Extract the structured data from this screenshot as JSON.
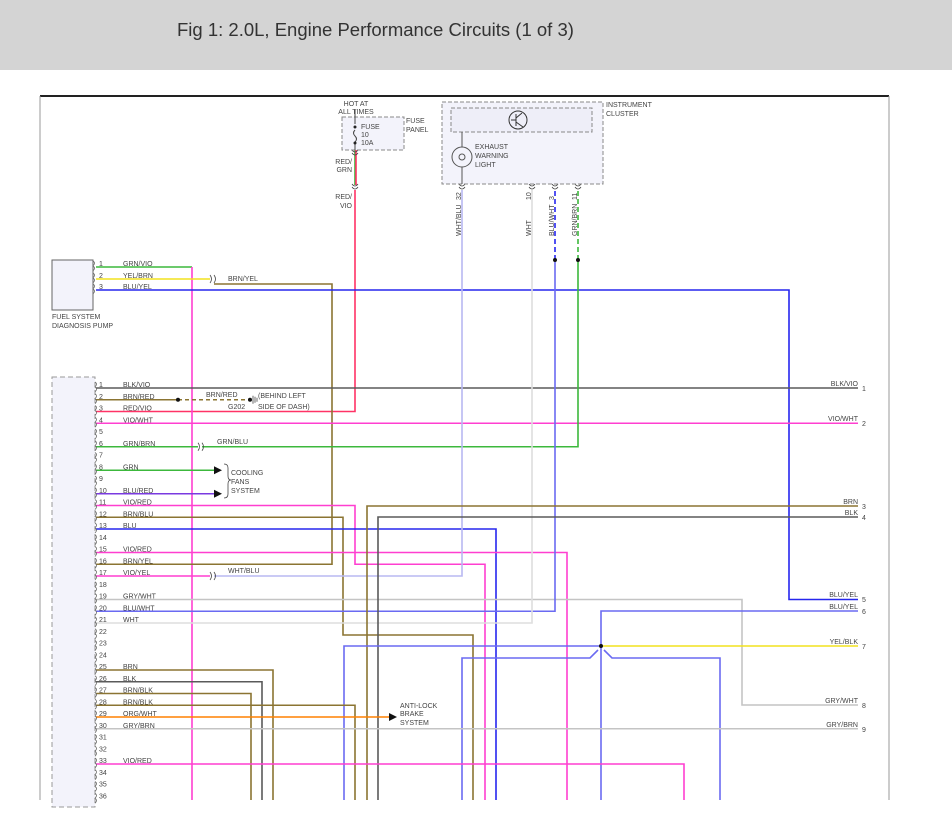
{
  "header": {
    "title": "Fig 1: 2.0L, Engine Performance Circuits (1 of 3)"
  },
  "fuse": {
    "hot_line1": "HOT AT",
    "hot_line2": "ALL TIMES",
    "label": "FUSE",
    "number": "10",
    "rating": "10A",
    "panel_line1": "FUSE",
    "panel_line2": "PANEL",
    "wire_in_1": "RED/",
    "wire_in_2": "GRN",
    "wire_out_1": "RED/",
    "wire_out_2": "VIO"
  },
  "cluster": {
    "name_line1": "INSTRUMENT",
    "name_line2": "CLUSTER",
    "light_line1": "EXHAUST",
    "light_line2": "WARNING",
    "light_line3": "LIGHT",
    "pins": [
      {
        "num": "32",
        "wire": "WHT/BLU"
      },
      {
        "num": "10",
        "wire": "WHT"
      },
      {
        "num": "3",
        "wire": "BLU/WHT"
      },
      {
        "num": "11",
        "wire": "GRN/BRN"
      }
    ]
  },
  "pump": {
    "name_line1": "FUEL SYSTEM",
    "name_line2": "DIAGNOSIS PUMP",
    "pins": [
      {
        "num": "1",
        "wire": "GRN/VIO"
      },
      {
        "num": "2",
        "wire": "YEL/BRN"
      },
      {
        "num": "3",
        "wire": "BLU/YEL"
      }
    ]
  },
  "splices": {
    "brn_yel": "BRN/YEL",
    "grn_blu": "GRN/BLU",
    "wht_blu": "WHT/BLU",
    "brn_red": "BRN/RED"
  },
  "ground": {
    "id": "G202",
    "note_line1": "(BEHIND LEFT",
    "note_line2": "SIDE OF DASH)"
  },
  "cooling": {
    "line1": "COOLING",
    "line2": "FANS",
    "line3": "SYSTEM"
  },
  "abs": {
    "line1": "ANTI-LOCK",
    "line2": "BRAKE",
    "line3": "SYSTEM"
  },
  "main_connector": {
    "pins": [
      {
        "num": "1",
        "wire": "BLK/VIO"
      },
      {
        "num": "2",
        "wire": "BRN/RED"
      },
      {
        "num": "3",
        "wire": "RED/VIO"
      },
      {
        "num": "4",
        "wire": "VIO/WHT"
      },
      {
        "num": "5",
        "wire": ""
      },
      {
        "num": "6",
        "wire": "GRN/BRN"
      },
      {
        "num": "7",
        "wire": ""
      },
      {
        "num": "8",
        "wire": "GRN"
      },
      {
        "num": "9",
        "wire": ""
      },
      {
        "num": "10",
        "wire": "BLU/RED"
      },
      {
        "num": "11",
        "wire": "VIO/RED"
      },
      {
        "num": "12",
        "wire": "BRN/BLU"
      },
      {
        "num": "13",
        "wire": "BLU"
      },
      {
        "num": "14",
        "wire": ""
      },
      {
        "num": "15",
        "wire": "VIO/RED"
      },
      {
        "num": "16",
        "wire": "BRN/YEL"
      },
      {
        "num": "17",
        "wire": "VIO/YEL"
      },
      {
        "num": "18",
        "wire": ""
      },
      {
        "num": "19",
        "wire": "GRY/WHT"
      },
      {
        "num": "20",
        "wire": "BLU/WHT"
      },
      {
        "num": "21",
        "wire": "WHT"
      },
      {
        "num": "22",
        "wire": ""
      },
      {
        "num": "23",
        "wire": ""
      },
      {
        "num": "24",
        "wire": ""
      },
      {
        "num": "25",
        "wire": "BRN"
      },
      {
        "num": "26",
        "wire": "BLK"
      },
      {
        "num": "27",
        "wire": "BRN/BLK"
      },
      {
        "num": "28",
        "wire": "BRN/BLK"
      },
      {
        "num": "29",
        "wire": "ORG/WHT"
      },
      {
        "num": "30",
        "wire": "GRY/BRN"
      },
      {
        "num": "31",
        "wire": ""
      },
      {
        "num": "32",
        "wire": ""
      },
      {
        "num": "33",
        "wire": "VIO/RED"
      },
      {
        "num": "34",
        "wire": ""
      },
      {
        "num": "35",
        "wire": ""
      },
      {
        "num": "36",
        "wire": ""
      }
    ]
  },
  "right_connector": {
    "pins": [
      {
        "num": "1",
        "wire": "BLK/VIO"
      },
      {
        "num": "2",
        "wire": "VIO/WHT"
      },
      {
        "num": "3",
        "wire": "BRN"
      },
      {
        "num": "4",
        "wire": "BLK"
      },
      {
        "num": "5",
        "wire": "BLU/YEL"
      },
      {
        "num": "6",
        "wire": "BLU/YEL"
      },
      {
        "num": "7",
        "wire": "YEL/BLK"
      },
      {
        "num": "8",
        "wire": "GRY/WHT"
      },
      {
        "num": "9",
        "wire": "GRY/BRN"
      }
    ]
  },
  "colors": {
    "GRN": "#3cb83c",
    "VIO": "#ff3fd0",
    "BLU": "#2626ee",
    "BLU_LT": "#6a6af2",
    "BRN": "#8b7432",
    "BLK": "#5a5a5a",
    "GRY": "#c4c4c4",
    "WHT": "#dedede",
    "YEL": "#f2e21e",
    "ORG": "#ff8000",
    "LAV": "#b8b8f2",
    "RED": "#ff3366",
    "header_bg": "#d4d4d4"
  }
}
